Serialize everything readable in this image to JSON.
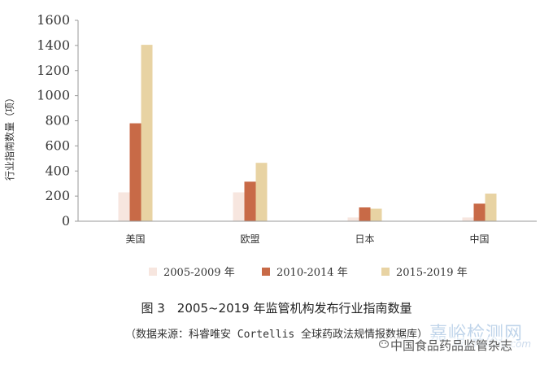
{
  "chart_data": {
    "type": "bar",
    "categories": [
      "美国",
      "欧盟",
      "日本",
      "中国"
    ],
    "series": [
      {
        "name": "2005-2009 年",
        "color": "#f7e6df",
        "values": [
          230,
          230,
          30,
          30
        ]
      },
      {
        "name": "2010-2014 年",
        "color": "#c86a47",
        "values": [
          780,
          315,
          110,
          140
        ]
      },
      {
        "name": "2015-2019 年",
        "color": "#e8d3a3",
        "values": [
          1405,
          465,
          100,
          220
        ]
      }
    ],
    "ylabel": "行业指南数量（项）",
    "ylim": [
      0,
      1600
    ],
    "yticks": [
      0,
      200,
      400,
      600,
      800,
      1000,
      1200,
      1400,
      1600
    ],
    "grid": false,
    "legend_position": "bottom"
  },
  "caption": "图 3　2005~2019 年监管机构发布行业指南数量",
  "source": "（数据来源：科睿唯安 Cortellis 全球药政法规情报数据库）",
  "watermark": {
    "site": "嘉峪检测网",
    "url": "AnyTesting.com",
    "account": "中国食品药品监管杂志"
  }
}
